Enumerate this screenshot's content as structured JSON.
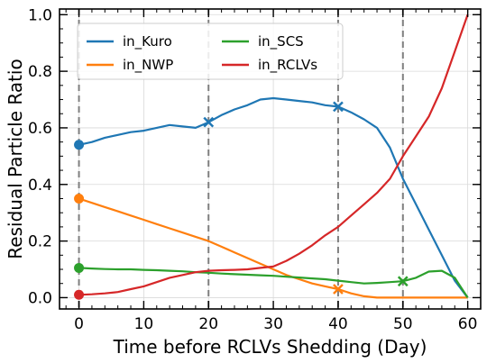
{
  "chart_data": {
    "type": "line",
    "xlabel": "Time before RCLVs Shedding (Day)",
    "ylabel": "Residual Particle Ratio",
    "xlim": [
      -3,
      62
    ],
    "ylim": [
      -0.04,
      1.02
    ],
    "xticks": [
      0,
      10,
      20,
      30,
      40,
      50,
      60
    ],
    "yticks": [
      0.0,
      0.2,
      0.4,
      0.6,
      0.8,
      1.0
    ],
    "x_minor_step": 2,
    "y_minor_step": 0.05,
    "grid": true,
    "legend": {
      "position": "top-left",
      "columns": 2
    },
    "vlines": [
      0,
      20,
      40,
      50
    ],
    "series": [
      {
        "name": "in_Kuro",
        "color": "#1f77b4",
        "x": [
          0,
          2,
          4,
          6,
          8,
          10,
          12,
          14,
          16,
          18,
          20,
          22,
          24,
          26,
          28,
          30,
          32,
          34,
          36,
          38,
          40,
          42,
          44,
          46,
          48,
          50,
          52,
          54,
          56,
          58,
          60
        ],
        "y": [
          0.54,
          0.55,
          0.565,
          0.575,
          0.585,
          0.59,
          0.6,
          0.61,
          0.605,
          0.6,
          0.62,
          0.645,
          0.665,
          0.68,
          0.7,
          0.705,
          0.7,
          0.695,
          0.69,
          0.68,
          0.675,
          0.655,
          0.63,
          0.6,
          0.53,
          0.42,
          0.33,
          0.24,
          0.15,
          0.06,
          0.0
        ],
        "markers": [
          {
            "x": 0,
            "y": 0.54,
            "shape": "circle"
          },
          {
            "x": 20,
            "y": 0.62,
            "shape": "x"
          },
          {
            "x": 40,
            "y": 0.675,
            "shape": "x"
          }
        ]
      },
      {
        "name": "in_NWP",
        "color": "#ff7f0e",
        "x": [
          0,
          2,
          4,
          6,
          8,
          10,
          12,
          14,
          16,
          18,
          20,
          22,
          24,
          26,
          28,
          30,
          32,
          34,
          36,
          38,
          40,
          42,
          44,
          46,
          48,
          50,
          52,
          54,
          56,
          58,
          60
        ],
        "y": [
          0.35,
          0.335,
          0.32,
          0.305,
          0.29,
          0.275,
          0.26,
          0.245,
          0.23,
          0.215,
          0.2,
          0.18,
          0.16,
          0.14,
          0.12,
          0.1,
          0.08,
          0.065,
          0.05,
          0.04,
          0.03,
          0.015,
          0.005,
          0.0,
          0.0,
          0.0,
          0.0,
          0.0,
          0.0,
          0.0,
          0.0
        ],
        "markers": [
          {
            "x": 0,
            "y": 0.35,
            "shape": "circle"
          },
          {
            "x": 40,
            "y": 0.03,
            "shape": "x"
          }
        ]
      },
      {
        "name": "in_SCS",
        "color": "#2ca02c",
        "x": [
          0,
          2,
          4,
          6,
          8,
          10,
          12,
          14,
          16,
          18,
          20,
          22,
          24,
          26,
          28,
          30,
          32,
          34,
          36,
          38,
          40,
          42,
          44,
          46,
          48,
          50,
          52,
          54,
          56,
          58,
          60
        ],
        "y": [
          0.105,
          0.103,
          0.101,
          0.1,
          0.1,
          0.098,
          0.097,
          0.095,
          0.093,
          0.09,
          0.088,
          0.085,
          0.083,
          0.081,
          0.079,
          0.077,
          0.074,
          0.071,
          0.068,
          0.065,
          0.06,
          0.055,
          0.05,
          0.052,
          0.055,
          0.058,
          0.07,
          0.092,
          0.095,
          0.07,
          0.0
        ],
        "markers": [
          {
            "x": 0,
            "y": 0.105,
            "shape": "circle"
          },
          {
            "x": 50,
            "y": 0.058,
            "shape": "x"
          }
        ]
      },
      {
        "name": "in_RCLVs",
        "color": "#d62728",
        "x": [
          0,
          2,
          4,
          6,
          8,
          10,
          12,
          14,
          16,
          18,
          20,
          22,
          24,
          26,
          28,
          30,
          32,
          34,
          36,
          38,
          40,
          42,
          44,
          46,
          48,
          50,
          52,
          54,
          56,
          58,
          60
        ],
        "y": [
          0.01,
          0.012,
          0.015,
          0.02,
          0.03,
          0.04,
          0.055,
          0.07,
          0.08,
          0.09,
          0.095,
          0.097,
          0.098,
          0.1,
          0.105,
          0.11,
          0.13,
          0.155,
          0.185,
          0.22,
          0.25,
          0.29,
          0.33,
          0.37,
          0.42,
          0.5,
          0.57,
          0.64,
          0.74,
          0.87,
          1.0
        ],
        "markers": [
          {
            "x": 0,
            "y": 0.01,
            "shape": "circle"
          }
        ]
      }
    ]
  }
}
